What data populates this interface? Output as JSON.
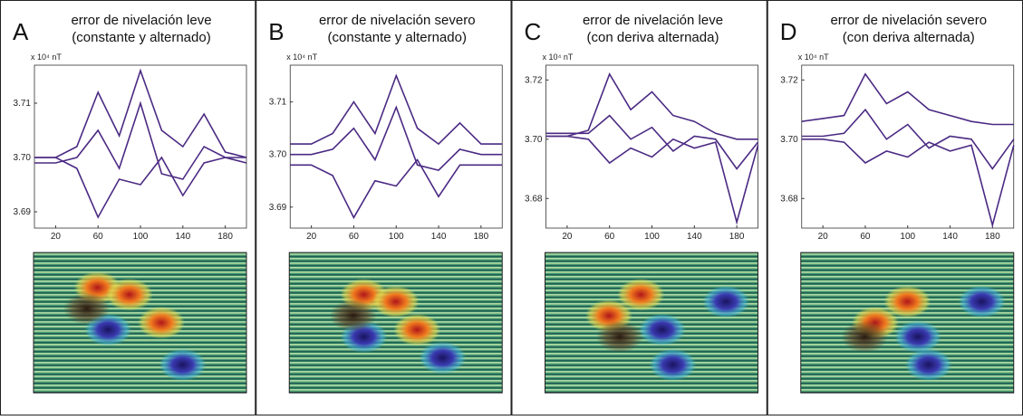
{
  "chart_data": [
    {
      "type": "line",
      "panel": "A",
      "title": [
        "error de nivelación leve",
        "(constante y alternado)"
      ],
      "y_label": "x 10⁴ nT",
      "x": [
        0,
        20,
        40,
        60,
        80,
        100,
        120,
        140,
        160,
        180,
        200
      ],
      "xlim": [
        0,
        200
      ],
      "xticks": [
        20,
        60,
        100,
        140,
        180
      ],
      "ylim": [
        3.687,
        3.717
      ],
      "yticks": [
        3.69,
        {
          "value": 3.7,
          "label": "3.70"
        },
        3.71
      ],
      "series": [
        {
          "color": "#4b2a83",
          "values": [
            3.7,
            3.7,
            3.702,
            3.712,
            3.704,
            3.716,
            3.705,
            3.702,
            3.708,
            3.701,
            3.7
          ]
        },
        {
          "color": "#4b2a83",
          "values": [
            3.7,
            3.7,
            3.698,
            3.689,
            3.696,
            3.695,
            3.7,
            3.693,
            3.699,
            3.7,
            3.7
          ]
        },
        {
          "color": "#4b2a83",
          "values": [
            3.699,
            3.699,
            3.7,
            3.705,
            3.698,
            3.71,
            3.697,
            3.696,
            3.702,
            3.7,
            3.699
          ]
        }
      ]
    },
    {
      "type": "line",
      "panel": "B",
      "title": [
        "error de nivelación severo",
        "(constante y alternado)"
      ],
      "y_label": "x 10⁴ nT",
      "x": [
        0,
        20,
        40,
        60,
        80,
        100,
        120,
        140,
        160,
        180,
        200
      ],
      "xlim": [
        0,
        200
      ],
      "xticks": [
        20,
        60,
        100,
        140,
        180
      ],
      "ylim": [
        3.686,
        3.717
      ],
      "yticks": [
        3.69,
        {
          "value": 3.7,
          "label": "3.70"
        },
        3.71
      ],
      "series": [
        {
          "color": "#4b2a83",
          "values": [
            3.702,
            3.702,
            3.704,
            3.71,
            3.704,
            3.715,
            3.705,
            3.702,
            3.706,
            3.702,
            3.702
          ]
        },
        {
          "color": "#4b2a83",
          "values": [
            3.698,
            3.698,
            3.696,
            3.688,
            3.695,
            3.694,
            3.699,
            3.692,
            3.698,
            3.698,
            3.698
          ]
        },
        {
          "color": "#4b2a83",
          "values": [
            3.7,
            3.7,
            3.701,
            3.705,
            3.699,
            3.709,
            3.698,
            3.697,
            3.701,
            3.7,
            3.7
          ]
        }
      ]
    },
    {
      "type": "line",
      "panel": "C",
      "title": [
        "error de nivelación leve",
        "(con deriva alternada)"
      ],
      "y_label": "x 10⁴ nT",
      "x": [
        0,
        20,
        40,
        60,
        80,
        100,
        120,
        140,
        160,
        180,
        200
      ],
      "xlim": [
        0,
        200
      ],
      "xticks": [
        20,
        60,
        100,
        140,
        180
      ],
      "ylim": [
        3.67,
        3.725
      ],
      "yticks": [
        3.68,
        {
          "value": 3.7,
          "label": "3.70"
        },
        3.72
      ],
      "series": [
        {
          "color": "#4b2a83",
          "values": [
            3.701,
            3.701,
            3.703,
            3.722,
            3.71,
            3.716,
            3.708,
            3.706,
            3.702,
            3.7,
            3.7
          ]
        },
        {
          "color": "#4b2a83",
          "values": [
            3.701,
            3.701,
            3.7,
            3.692,
            3.697,
            3.694,
            3.7,
            3.697,
            3.699,
            3.672,
            3.698
          ]
        },
        {
          "color": "#4b2a83",
          "values": [
            3.702,
            3.702,
            3.702,
            3.708,
            3.7,
            3.704,
            3.696,
            3.701,
            3.7,
            3.69,
            3.699
          ]
        }
      ]
    },
    {
      "type": "line",
      "panel": "D",
      "title": [
        "error de nivelación severo",
        "(con deriva alternada)"
      ],
      "y_label": "x 10⁴ nT",
      "x": [
        0,
        20,
        40,
        60,
        80,
        100,
        120,
        140,
        160,
        180,
        200
      ],
      "xlim": [
        0,
        200
      ],
      "xticks": [
        20,
        60,
        100,
        140,
        180
      ],
      "ylim": [
        3.67,
        3.725
      ],
      "yticks": [
        3.68,
        {
          "value": 3.7,
          "label": "3.70"
        },
        3.72
      ],
      "series": [
        {
          "color": "#4b2a83",
          "values": [
            3.706,
            3.707,
            3.708,
            3.722,
            3.712,
            3.716,
            3.71,
            3.708,
            3.706,
            3.705,
            3.705
          ]
        },
        {
          "color": "#4b2a83",
          "values": [
            3.7,
            3.7,
            3.699,
            3.692,
            3.696,
            3.694,
            3.699,
            3.696,
            3.698,
            3.671,
            3.698
          ]
        },
        {
          "color": "#4b2a83",
          "values": [
            3.701,
            3.701,
            3.702,
            3.71,
            3.7,
            3.705,
            3.697,
            3.701,
            3.7,
            3.69,
            3.7
          ]
        }
      ]
    }
  ]
}
